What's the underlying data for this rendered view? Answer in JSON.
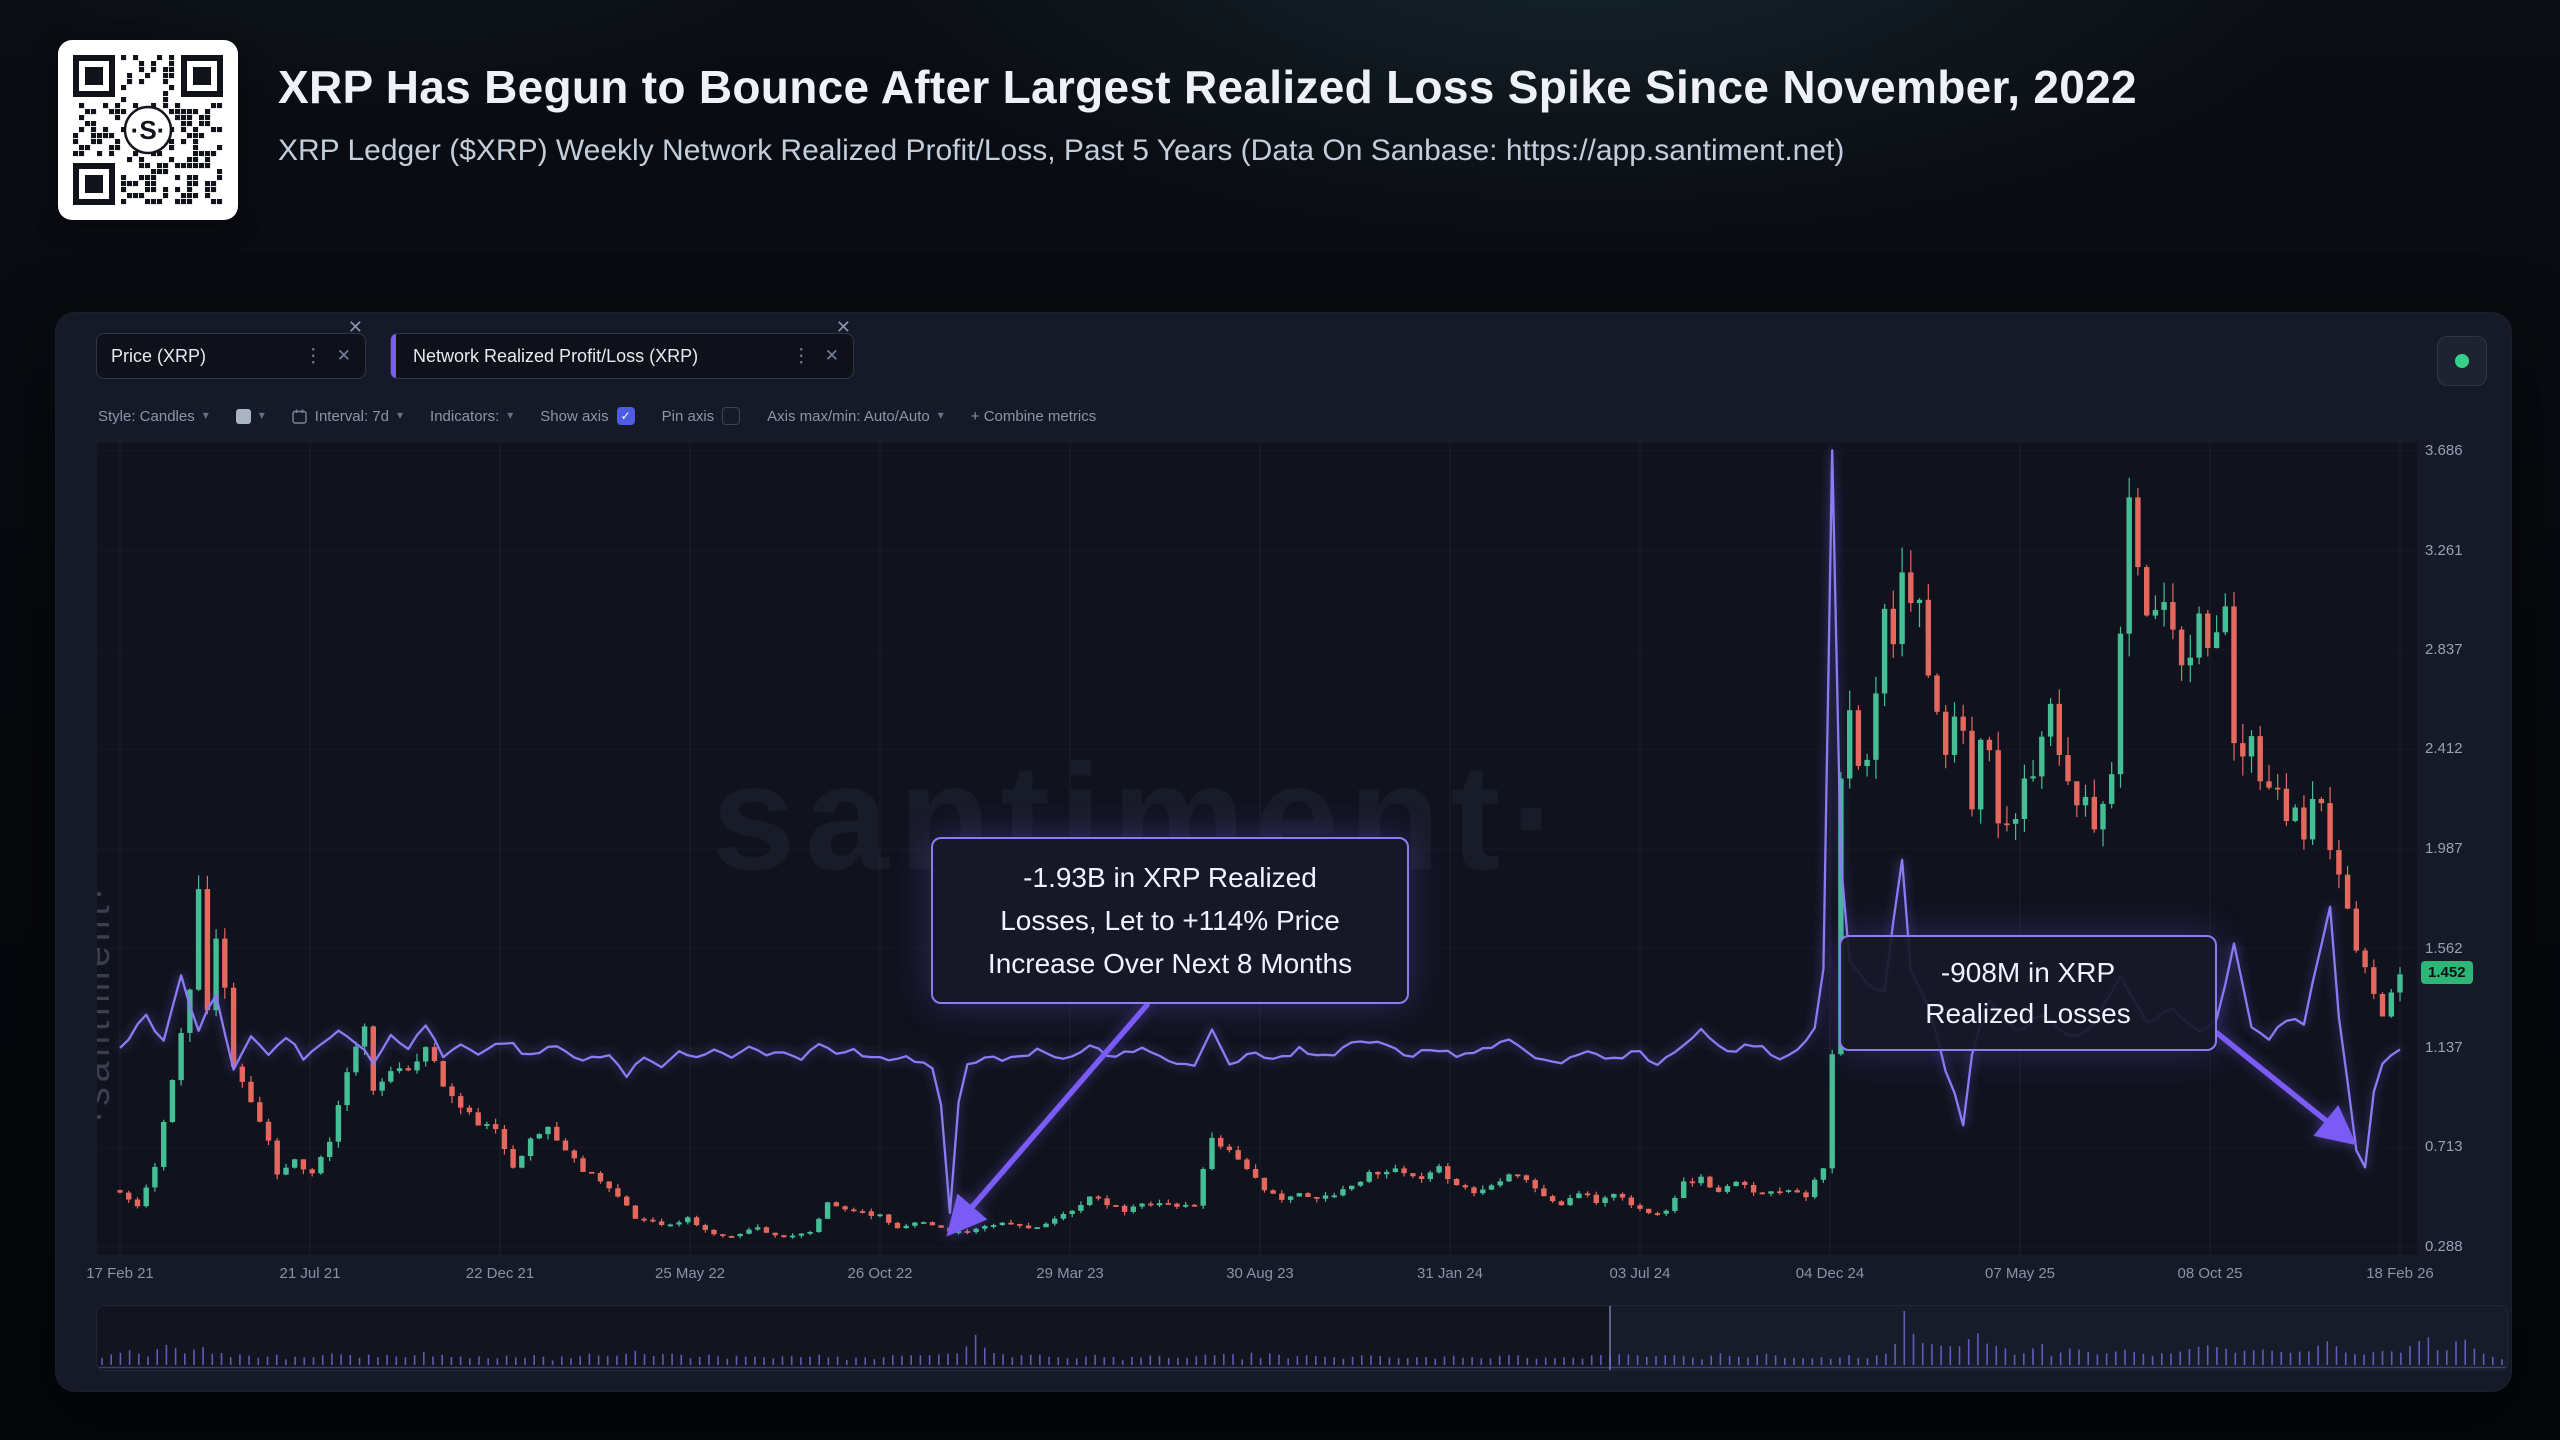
{
  "header": {
    "title": "XRP Has Begun to Bounce After Largest Realized Loss Spike Since November, 2022",
    "subtitle": "XRP Ledger ($XRP) Weekly Network Realized Profit/Loss, Past 5 Years (Data On Sanbase: https://app.santiment.net)"
  },
  "watermarks": {
    "center": "santiment·",
    "left": "·santiment·"
  },
  "panel": {
    "tabs": [
      {
        "label": "Price (XRP)"
      },
      {
        "label": "Network Realized Profit/Loss (XRP)"
      }
    ],
    "toolbar": {
      "style_label": "Style: Candles",
      "interval_label": "Interval: 7d",
      "indicators_label": "Indicators:",
      "show_axis_label": "Show axis",
      "show_axis_checked": true,
      "pin_axis_label": "Pin axis",
      "pin_axis_checked": false,
      "axis_label": "Axis max/min: Auto/Auto",
      "combine_label": "+ Combine metrics"
    }
  },
  "chart_data": {
    "type": "candlestick",
    "interval": "7d",
    "weeks": 261,
    "x_ticks": [
      "17 Feb 21",
      "21 Jul 21",
      "22 Dec 21",
      "25 May 22",
      "26 Oct 22",
      "29 Mar 23",
      "30 Aug 23",
      "31 Jan 24",
      "03 Jul 24",
      "04 Dec 24",
      "07 May 25",
      "08 Oct 25",
      "18 Feb 26"
    ],
    "y_ticks": [
      "3.686",
      "3.261",
      "2.837",
      "2.412",
      "1.987",
      "1.562",
      "1.137",
      "0.713",
      "0.288"
    ],
    "y_range": [
      0.288,
      3.686
    ],
    "current_price": "1.452",
    "legend_position": "top",
    "grid": true,
    "colors": {
      "up": "#45BD95",
      "down": "#E4685D",
      "line": "#8B7CF3",
      "accent": "#7A5CF5"
    },
    "series": [
      {
        "name": "Price (XRP)",
        "type": "candlestick",
        "close_anchors": [
          [
            0,
            0.52
          ],
          [
            2,
            0.46
          ],
          [
            4,
            0.62
          ],
          [
            6,
            1.02
          ],
          [
            8,
            1.38
          ],
          [
            9,
            1.82
          ],
          [
            10,
            1.3
          ],
          [
            11,
            1.58
          ],
          [
            12,
            1.4
          ],
          [
            13,
            1.05
          ],
          [
            15,
            0.92
          ],
          [
            17,
            0.75
          ],
          [
            18,
            0.6
          ],
          [
            20,
            0.66
          ],
          [
            22,
            0.6
          ],
          [
            24,
            0.74
          ],
          [
            26,
            1.02
          ],
          [
            28,
            1.24
          ],
          [
            29,
            0.95
          ],
          [
            31,
            1.06
          ],
          [
            33,
            1.02
          ],
          [
            35,
            1.16
          ],
          [
            37,
            0.98
          ],
          [
            39,
            0.88
          ],
          [
            41,
            0.82
          ],
          [
            43,
            0.78
          ],
          [
            45,
            0.64
          ],
          [
            47,
            0.74
          ],
          [
            49,
            0.8
          ],
          [
            51,
            0.7
          ],
          [
            53,
            0.62
          ],
          [
            55,
            0.58
          ],
          [
            57,
            0.5
          ],
          [
            59,
            0.41
          ],
          [
            61,
            0.4
          ],
          [
            63,
            0.38
          ],
          [
            65,
            0.41
          ],
          [
            67,
            0.36
          ],
          [
            69,
            0.33
          ],
          [
            71,
            0.35
          ],
          [
            73,
            0.37
          ],
          [
            75,
            0.34
          ],
          [
            77,
            0.33
          ],
          [
            79,
            0.35
          ],
          [
            81,
            0.47
          ],
          [
            83,
            0.45
          ],
          [
            85,
            0.44
          ],
          [
            87,
            0.42
          ],
          [
            89,
            0.37
          ],
          [
            91,
            0.4
          ],
          [
            93,
            0.38
          ],
          [
            95,
            0.36
          ],
          [
            97,
            0.35
          ],
          [
            99,
            0.37
          ],
          [
            101,
            0.39
          ],
          [
            103,
            0.38
          ],
          [
            105,
            0.37
          ],
          [
            107,
            0.4
          ],
          [
            109,
            0.45
          ],
          [
            111,
            0.5
          ],
          [
            113,
            0.47
          ],
          [
            115,
            0.44
          ],
          [
            117,
            0.47
          ],
          [
            119,
            0.48
          ],
          [
            121,
            0.46
          ],
          [
            123,
            0.47
          ],
          [
            125,
            0.76
          ],
          [
            127,
            0.7
          ],
          [
            129,
            0.63
          ],
          [
            131,
            0.52
          ],
          [
            133,
            0.5
          ],
          [
            135,
            0.51
          ],
          [
            137,
            0.49
          ],
          [
            139,
            0.52
          ],
          [
            141,
            0.55
          ],
          [
            143,
            0.6
          ],
          [
            145,
            0.62
          ],
          [
            147,
            0.6
          ],
          [
            149,
            0.57
          ],
          [
            151,
            0.62
          ],
          [
            153,
            0.56
          ],
          [
            155,
            0.52
          ],
          [
            157,
            0.55
          ],
          [
            159,
            0.61
          ],
          [
            161,
            0.58
          ],
          [
            163,
            0.5
          ],
          [
            165,
            0.47
          ],
          [
            167,
            0.52
          ],
          [
            169,
            0.48
          ],
          [
            171,
            0.52
          ],
          [
            173,
            0.47
          ],
          [
            175,
            0.43
          ],
          [
            177,
            0.45
          ],
          [
            179,
            0.56
          ],
          [
            181,
            0.58
          ],
          [
            183,
            0.52
          ],
          [
            185,
            0.56
          ],
          [
            187,
            0.53
          ],
          [
            189,
            0.52
          ],
          [
            191,
            0.54
          ],
          [
            193,
            0.51
          ],
          [
            195,
            0.62
          ],
          [
            196,
            1.1
          ],
          [
            197,
            2.28
          ],
          [
            198,
            2.55
          ],
          [
            199,
            2.32
          ],
          [
            200,
            2.38
          ],
          [
            201,
            2.62
          ],
          [
            202,
            3.05
          ],
          [
            203,
            2.9
          ],
          [
            204,
            3.22
          ],
          [
            205,
            3.02
          ],
          [
            206,
            3.12
          ],
          [
            207,
            2.72
          ],
          [
            208,
            2.52
          ],
          [
            209,
            2.35
          ],
          [
            210,
            2.55
          ],
          [
            211,
            2.45
          ],
          [
            212,
            2.2
          ],
          [
            213,
            2.45
          ],
          [
            214,
            2.38
          ],
          [
            215,
            2.12
          ],
          [
            216,
            2.05
          ],
          [
            217,
            2.15
          ],
          [
            218,
            2.25
          ],
          [
            219,
            2.3
          ],
          [
            220,
            2.42
          ],
          [
            221,
            2.55
          ],
          [
            222,
            2.4
          ],
          [
            223,
            2.28
          ],
          [
            224,
            2.18
          ],
          [
            225,
            2.25
          ],
          [
            226,
            2.1
          ],
          [
            227,
            2.22
          ],
          [
            228,
            2.35
          ],
          [
            229,
            2.85
          ],
          [
            230,
            3.48
          ],
          [
            231,
            3.18
          ],
          [
            232,
            3.02
          ],
          [
            233,
            2.95
          ],
          [
            234,
            3.1
          ],
          [
            235,
            2.88
          ],
          [
            236,
            2.8
          ],
          [
            237,
            2.86
          ],
          [
            238,
            3.0
          ],
          [
            239,
            2.86
          ],
          [
            240,
            2.96
          ],
          [
            241,
            3.04
          ],
          [
            242,
            2.48
          ],
          [
            243,
            2.34
          ],
          [
            244,
            2.46
          ],
          [
            245,
            2.28
          ],
          [
            246,
            2.2
          ],
          [
            247,
            2.26
          ],
          [
            248,
            2.1
          ],
          [
            249,
            2.16
          ],
          [
            250,
            2.05
          ],
          [
            251,
            2.2
          ],
          [
            252,
            2.14
          ],
          [
            253,
            2.0
          ],
          [
            254,
            1.88
          ],
          [
            255,
            1.74
          ],
          [
            256,
            1.58
          ],
          [
            257,
            1.5
          ],
          [
            258,
            1.36
          ],
          [
            259,
            1.3
          ],
          [
            260,
            1.4
          ],
          [
            261,
            1.452
          ]
        ]
      },
      {
        "name": "Network Realized Profit/Loss (XRP)",
        "type": "line",
        "baseline": 1.137,
        "anchors": [
          [
            0,
            1.14
          ],
          [
            3,
            1.28
          ],
          [
            5,
            1.16
          ],
          [
            7,
            1.44
          ],
          [
            9,
            1.22
          ],
          [
            11,
            1.36
          ],
          [
            13,
            1.04
          ],
          [
            15,
            1.2
          ],
          [
            17,
            1.12
          ],
          [
            19,
            1.18
          ],
          [
            21,
            1.1
          ],
          [
            23,
            1.16
          ],
          [
            25,
            1.22
          ],
          [
            27,
            1.17
          ],
          [
            29,
            1.07
          ],
          [
            31,
            1.19
          ],
          [
            33,
            1.14
          ],
          [
            35,
            1.24
          ],
          [
            37,
            1.1
          ],
          [
            39,
            1.15
          ],
          [
            41,
            1.12
          ],
          [
            44,
            1.17
          ],
          [
            47,
            1.1
          ],
          [
            50,
            1.15
          ],
          [
            53,
            1.08
          ],
          [
            56,
            1.11
          ],
          [
            58,
            1.02
          ],
          [
            60,
            1.1
          ],
          [
            62,
            1.06
          ],
          [
            64,
            1.12
          ],
          [
            66,
            1.09
          ],
          [
            68,
            1.13
          ],
          [
            70,
            1.1
          ],
          [
            72,
            1.14
          ],
          [
            74,
            1.11
          ],
          [
            76,
            1.13
          ],
          [
            78,
            1.1
          ],
          [
            80,
            1.16
          ],
          [
            82,
            1.12
          ],
          [
            84,
            1.13
          ],
          [
            86,
            1.1
          ],
          [
            88,
            1.08
          ],
          [
            90,
            1.1
          ],
          [
            93,
            1.05
          ],
          [
            94,
            0.88
          ],
          [
            95,
            0.44
          ],
          [
            96,
            0.92
          ],
          [
            97,
            1.06
          ],
          [
            99,
            1.11
          ],
          [
            102,
            1.09
          ],
          [
            105,
            1.13
          ],
          [
            108,
            1.1
          ],
          [
            111,
            1.14
          ],
          [
            114,
            1.1
          ],
          [
            117,
            1.13
          ],
          [
            120,
            1.09
          ],
          [
            123,
            1.07
          ],
          [
            125,
            1.21
          ],
          [
            127,
            1.06
          ],
          [
            129,
            1.12
          ],
          [
            132,
            1.09
          ],
          [
            135,
            1.13
          ],
          [
            138,
            1.1
          ],
          [
            141,
            1.15
          ],
          [
            144,
            1.17
          ],
          [
            147,
            1.1
          ],
          [
            150,
            1.14
          ],
          [
            153,
            1.1
          ],
          [
            156,
            1.13
          ],
          [
            159,
            1.16
          ],
          [
            162,
            1.1
          ],
          [
            165,
            1.07
          ],
          [
            168,
            1.12
          ],
          [
            171,
            1.09
          ],
          [
            174,
            1.13
          ],
          [
            176,
            1.06
          ],
          [
            178,
            1.12
          ],
          [
            181,
            1.21
          ],
          [
            184,
            1.12
          ],
          [
            187,
            1.15
          ],
          [
            190,
            1.1
          ],
          [
            192,
            1.13
          ],
          [
            194,
            1.22
          ],
          [
            195,
            1.48
          ],
          [
            196,
            3.69
          ],
          [
            197,
            1.92
          ],
          [
            198,
            1.5
          ],
          [
            200,
            1.42
          ],
          [
            202,
            1.38
          ],
          [
            204,
            1.95
          ],
          [
            205,
            1.48
          ],
          [
            207,
            1.32
          ],
          [
            209,
            1.05
          ],
          [
            211,
            0.82
          ],
          [
            212,
            1.12
          ],
          [
            214,
            1.34
          ],
          [
            217,
            1.2
          ],
          [
            220,
            1.28
          ],
          [
            223,
            1.18
          ],
          [
            226,
            1.24
          ],
          [
            229,
            1.44
          ],
          [
            232,
            1.24
          ],
          [
            235,
            1.3
          ],
          [
            238,
            1.22
          ],
          [
            240,
            1.26
          ],
          [
            242,
            1.58
          ],
          [
            244,
            1.22
          ],
          [
            246,
            1.18
          ],
          [
            248,
            1.26
          ],
          [
            250,
            1.24
          ],
          [
            252,
            1.58
          ],
          [
            253,
            1.74
          ],
          [
            254,
            1.28
          ],
          [
            255,
            1.0
          ],
          [
            256,
            0.7
          ],
          [
            257,
            0.63
          ],
          [
            258,
            0.95
          ],
          [
            259,
            1.08
          ],
          [
            261,
            1.13
          ]
        ]
      }
    ],
    "annotations": [
      {
        "lines": [
          "-1.93B in XRP Realized",
          "Losses, Let to +114% Price",
          "Increase Over Next 8 Months"
        ],
        "arrow_from": [
          1050,
          562
        ],
        "arrow_to": [
          856,
          786
        ]
      },
      {
        "lines": [
          "-908M in XRP",
          "Realized Losses"
        ],
        "arrow_from": [
          2120,
          590
        ],
        "arrow_to": [
          2252,
          696
        ]
      }
    ]
  }
}
